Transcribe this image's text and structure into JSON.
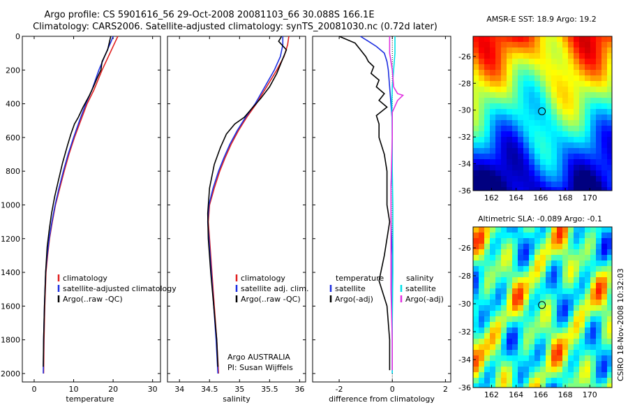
{
  "header": {
    "line1": "Argo profile: CS 5901616_56 29-Oct-2008 20081103_66 30.088S 166.1E",
    "line2": "Climatology: CARS2006. Satellite-adjusted climatology: synTS_20081030.nc (0.72d later)"
  },
  "footer": {
    "float_owner": "Argo AUSTRALIA",
    "pi": "PI: Susan Wijffels",
    "credit": "CSIRO 18-Nov-2008 10:32:03"
  },
  "colors": {
    "climatology": "#e02020",
    "satellite": "#1c2ee0",
    "argo": "#000000",
    "cyan": "#00e0e8",
    "magenta": "#e030e0"
  },
  "chart_data": [
    {
      "type": "line",
      "id": "temperature",
      "xlabel": "temperature",
      "ylabel": "",
      "xlim": [
        -3,
        32
      ],
      "ylim": [
        2050,
        0
      ],
      "xticks": [
        0,
        10,
        20,
        30
      ],
      "yticks": [
        0,
        200,
        400,
        600,
        800,
        1000,
        1200,
        1400,
        1600,
        1800,
        2000
      ],
      "legend": [
        "climatology",
        "satellite-adjusted climatology",
        "Argo(..raw -QC)"
      ],
      "series": [
        {
          "name": "climatology",
          "color": "#e02020",
          "x": [
            21.2,
            20.6,
            19.2,
            17.2,
            15.1,
            13.4,
            11.8,
            10.2,
            8.8,
            7.6,
            6.5,
            5.4,
            4.6,
            3.9,
            3.4,
            3.0,
            2.7,
            2.5,
            2.4
          ],
          "y": [
            0,
            30,
            100,
            200,
            320,
            400,
            500,
            600,
            700,
            800,
            900,
            1000,
            1100,
            1200,
            1300,
            1400,
            1600,
            1800,
            2000
          ]
        },
        {
          "name": "satellite-adjusted climatology",
          "color": "#1c2ee0",
          "x": [
            20.0,
            19.5,
            18.2,
            16.4,
            14.6,
            13.1,
            11.5,
            10.0,
            8.6,
            7.4,
            6.3,
            5.3,
            4.5,
            3.8,
            3.3,
            2.9,
            2.6,
            2.4,
            2.3
          ],
          "y": [
            0,
            30,
            100,
            200,
            320,
            400,
            500,
            600,
            700,
            800,
            900,
            1000,
            1100,
            1200,
            1300,
            1400,
            1600,
            1800,
            2000
          ]
        },
        {
          "name": "Argo(..raw -QC)",
          "color": "#000000",
          "x": [
            19.4,
            19.0,
            18.6,
            17.2,
            16.9,
            15.9,
            15.0,
            14.0,
            12.4,
            11.2,
            10.2,
            9.3,
            8.4,
            7.2,
            6.2,
            5.2,
            4.4,
            3.8,
            3.3,
            2.9,
            2.6,
            2.4,
            2.3
          ],
          "y": [
            0,
            40,
            80,
            150,
            200,
            250,
            300,
            350,
            420,
            480,
            520,
            580,
            650,
            750,
            850,
            950,
            1050,
            1150,
            1250,
            1400,
            1600,
            1800,
            1960
          ]
        }
      ]
    },
    {
      "type": "line",
      "id": "salinity",
      "xlabel": "salinity",
      "ylabel": "",
      "xlim": [
        33.8,
        36.1
      ],
      "ylim": [
        2050,
        0
      ],
      "xticks": [
        34,
        34.5,
        35,
        35.5,
        36
      ],
      "legend": [
        "climatology",
        "satellite adj. clim.",
        "Argo(..raw -QC)"
      ],
      "series": [
        {
          "name": "climatology",
          "color": "#e02020",
          "x": [
            35.82,
            35.8,
            35.74,
            35.62,
            35.45,
            35.28,
            35.12,
            34.98,
            34.86,
            34.76,
            34.67,
            34.58,
            34.5,
            34.48,
            34.5,
            34.54,
            34.58,
            34.62,
            34.65
          ],
          "y": [
            0,
            50,
            120,
            200,
            300,
            400,
            480,
            560,
            640,
            720,
            800,
            900,
            1000,
            1100,
            1200,
            1400,
            1600,
            1800,
            2000
          ]
        },
        {
          "name": "satellite adj. clim.",
          "color": "#1c2ee0",
          "x": [
            35.72,
            35.72,
            35.68,
            35.58,
            35.42,
            35.26,
            35.1,
            34.96,
            34.84,
            34.74,
            34.65,
            34.56,
            34.49,
            34.47,
            34.49,
            34.53,
            34.57,
            34.61,
            34.64
          ],
          "y": [
            0,
            50,
            120,
            200,
            300,
            400,
            480,
            560,
            640,
            720,
            800,
            900,
            1000,
            1100,
            1200,
            1400,
            1600,
            1800,
            2000
          ]
        },
        {
          "name": "Argo(..raw -QC)",
          "color": "#000000",
          "x": [
            35.7,
            35.65,
            35.78,
            35.7,
            35.62,
            35.5,
            35.35,
            35.2,
            35.08,
            34.92,
            34.78,
            34.68,
            34.58,
            34.5,
            34.47,
            34.48,
            34.52,
            34.57,
            34.62,
            34.64
          ],
          "y": [
            0,
            30,
            80,
            150,
            220,
            300,
            370,
            430,
            480,
            520,
            580,
            660,
            760,
            900,
            1050,
            1200,
            1400,
            1600,
            1800,
            1960
          ]
        }
      ]
    },
    {
      "type": "line",
      "id": "difference",
      "xlabel": "difference from climatology",
      "ylabel": "",
      "xlim": [
        -3,
        2.2
      ],
      "ylim": [
        2050,
        0
      ],
      "xticks": [
        -2,
        0,
        2
      ],
      "legend_left_title": "temperature",
      "legend_right_title": "salinity",
      "legend": [
        "satellite",
        "Argo(-adj)",
        "satellite",
        "Argo(-adj)"
      ],
      "series": [
        {
          "name": "temperature satellite",
          "color": "#1c2ee0",
          "x": [
            -1.2,
            -0.9,
            -0.6,
            -0.3,
            -0.2,
            -0.15,
            -0.1,
            -0.05,
            0.0,
            0.0,
            -0.05,
            -0.05,
            0.0,
            0.0,
            0.0,
            0.0
          ],
          "y": [
            0,
            30,
            60,
            100,
            150,
            200,
            300,
            400,
            500,
            700,
            900,
            1100,
            1300,
            1500,
            1700,
            2000
          ]
        },
        {
          "name": "temperature Argo(-adj)",
          "color": "#000000",
          "x": [
            -2.0,
            -1.4,
            -1.2,
            -1.0,
            -0.9,
            -0.7,
            -0.8,
            -0.5,
            -0.6,
            -0.3,
            -0.5,
            -0.2,
            -0.6,
            -0.5,
            -0.5,
            -0.3,
            -0.2,
            -0.2,
            -0.2,
            -0.1,
            -0.3,
            -0.5,
            -0.2,
            -0.1,
            -0.1
          ],
          "y": [
            0,
            40,
            80,
            120,
            150,
            180,
            220,
            260,
            300,
            340,
            380,
            420,
            470,
            520,
            600,
            700,
            800,
            900,
            1000,
            1100,
            1300,
            1450,
            1600,
            1800,
            1980
          ]
        },
        {
          "name": "salinity satellite",
          "color": "#00e0e8",
          "x": [
            0.1,
            0.1,
            0.05,
            0.0,
            -0.02,
            0.0,
            0.0,
            0.02,
            0.02,
            0.02,
            0.0,
            0.0
          ],
          "y": [
            0,
            100,
            200,
            300,
            400,
            600,
            800,
            1000,
            1200,
            1400,
            1700,
            2000
          ]
        },
        {
          "name": "salinity Argo(-adj)",
          "color": "#e030e0",
          "x": [
            -0.1,
            -0.1,
            0.0,
            0.05,
            0.2,
            0.4,
            0.2,
            0.0,
            0.0,
            -0.05,
            -0.05,
            -0.05,
            0.0,
            0.0
          ],
          "y": [
            0,
            100,
            200,
            300,
            340,
            350,
            380,
            450,
            600,
            900,
            1200,
            1500,
            1800,
            1980
          ]
        }
      ]
    },
    {
      "type": "heatmap",
      "id": "sst_map",
      "title": "AMSR-E SST: 18.9  Argo: 19.2",
      "xlim": [
        160.5,
        171.8
      ],
      "ylim": [
        -36,
        -24.5
      ],
      "xticks": [
        162,
        164,
        166,
        168,
        170
      ],
      "yticks": [
        -26,
        -28,
        -30,
        -32,
        -34,
        -36
      ],
      "float_position": {
        "lon": 166.1,
        "lat": -30.09
      },
      "colormap": "jet"
    },
    {
      "type": "heatmap",
      "id": "sla_map",
      "title": "Altimetric SLA: -0.089  Argo: -0.1",
      "xlim": [
        160.5,
        171.8
      ],
      "ylim": [
        -36,
        -24.5
      ],
      "xticks": [
        162,
        164,
        166,
        168,
        170
      ],
      "yticks": [
        -26,
        -28,
        -30,
        -32,
        -34,
        -36
      ],
      "float_position": {
        "lon": 166.1,
        "lat": -30.09
      },
      "colormap": "jet"
    }
  ]
}
